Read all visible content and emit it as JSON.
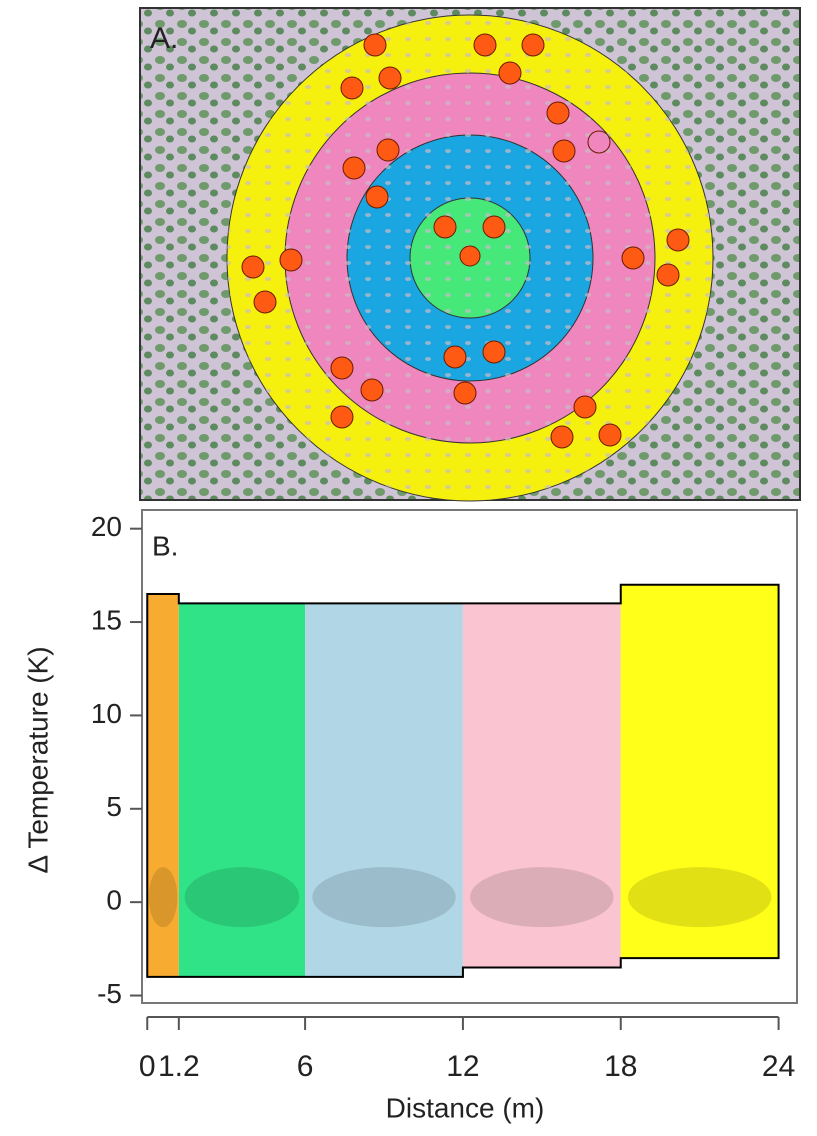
{
  "panel_a": {
    "label": "A."
  },
  "chart_data": {
    "type": "band",
    "label": "B.",
    "xlabel": "Distance (m)",
    "ylabel": "Δ Temperature (K)",
    "xlim": [
      -0.2,
      24.7
    ],
    "ylim": [
      -5.4,
      21
    ],
    "xticks": [
      0,
      1.2,
      6,
      12,
      18,
      24
    ],
    "yticks": [
      -5,
      0,
      5,
      10,
      15,
      20
    ],
    "bands": [
      {
        "start": 0,
        "end": 1.2,
        "ymin": -4,
        "ymax": 16.5,
        "color": "#f7a21b"
      },
      {
        "start": 1.2,
        "end": 6,
        "ymin": -4,
        "ymax": 16,
        "color": "#19e07a"
      },
      {
        "start": 6,
        "end": 12,
        "ymin": -4,
        "ymax": 16,
        "color": "#a9d3e3"
      },
      {
        "start": 12,
        "end": 18,
        "ymin": -3.5,
        "ymax": 16,
        "color": "#f9bfcb"
      },
      {
        "start": 18,
        "end": 24,
        "ymin": -3,
        "ymax": 17,
        "color": "#ffff00"
      }
    ]
  }
}
